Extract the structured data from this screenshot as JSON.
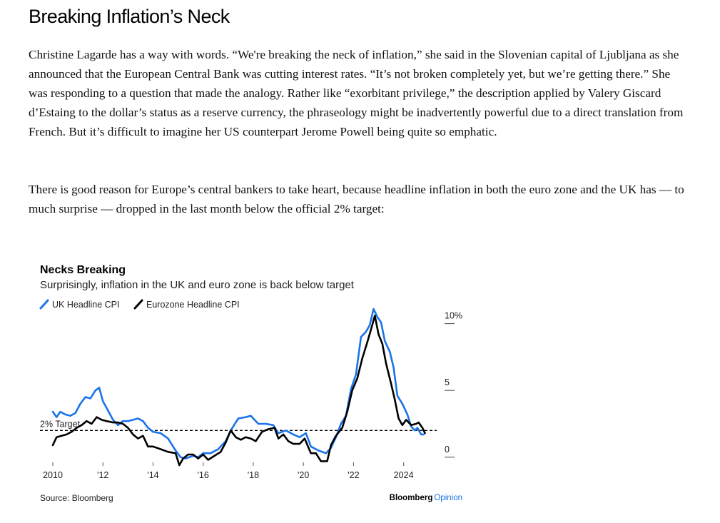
{
  "article": {
    "headline": "Breaking Inflation’s Neck",
    "paragraphs": [
      "Christine Lagarde has a way with words. “We're breaking the neck of inflation,” she said in the Slovenian capital of Ljubljana as she announced that the European Central Bank was cutting interest rates. “It’s not broken completely yet, but we’re getting there.” She was responding to a question that made the analogy. Rather like “exorbitant privilege,” the description applied by Valery Giscard d’Estaing to the dollar’s status as a reserve currency, the phraseology might be inadvertently powerful due to a direct translation from French. But it’s difficult to imagine her US counterpart Jerome Powell being quite so emphatic.",
      "There is good reason for Europe’s central bankers to take heart, because headline inflation in both the euro zone and the UK has — to much surprise — dropped in the last month below the official 2% target:"
    ]
  },
  "chart_data": {
    "type": "line",
    "title": "Necks Breaking",
    "subtitle": "Surprisingly, inflation in the UK and euro zone is back below target",
    "source": "Source: Bloomberg",
    "brand": {
      "name": "Bloomberg",
      "suffix": "Opinion"
    },
    "reference_line": {
      "value": 2,
      "label": "2% Target"
    },
    "xlim": [
      2010,
      2024.95
    ],
    "ylim": [
      -0.6,
      11.1
    ],
    "x_ticks": [
      {
        "value": 2010,
        "label": "2010"
      },
      {
        "value": 2012,
        "label": "'12"
      },
      {
        "value": 2014,
        "label": "'14"
      },
      {
        "value": 2016,
        "label": "'16"
      },
      {
        "value": 2018,
        "label": "'18"
      },
      {
        "value": 2020,
        "label": "'20"
      },
      {
        "value": 2022,
        "label": "'22"
      },
      {
        "value": 2024,
        "label": "2024"
      }
    ],
    "y_ticks": [
      {
        "value": 10,
        "label": "10%"
      },
      {
        "value": 5,
        "label": "5"
      },
      {
        "value": 0,
        "label": "0"
      }
    ],
    "grid": false,
    "legend_position": "top-left",
    "series": [
      {
        "name": "UK Headline CPI",
        "color": "#1a73e8",
        "points": [
          [
            2010.0,
            3.4
          ],
          [
            2010.15,
            3.0
          ],
          [
            2010.3,
            3.4
          ],
          [
            2010.5,
            3.2
          ],
          [
            2010.7,
            3.1
          ],
          [
            2010.9,
            3.3
          ],
          [
            2011.1,
            4.0
          ],
          [
            2011.3,
            4.5
          ],
          [
            2011.5,
            4.4
          ],
          [
            2011.7,
            5.0
          ],
          [
            2011.85,
            5.2
          ],
          [
            2012.0,
            4.2
          ],
          [
            2012.2,
            3.5
          ],
          [
            2012.4,
            2.8
          ],
          [
            2012.6,
            2.4
          ],
          [
            2012.8,
            2.7
          ],
          [
            2013.0,
            2.7
          ],
          [
            2013.2,
            2.8
          ],
          [
            2013.4,
            2.9
          ],
          [
            2013.6,
            2.7
          ],
          [
            2013.8,
            2.2
          ],
          [
            2014.0,
            1.9
          ],
          [
            2014.3,
            1.8
          ],
          [
            2014.6,
            1.4
          ],
          [
            2014.9,
            0.5
          ],
          [
            2015.1,
            0.0
          ],
          [
            2015.3,
            -0.1
          ],
          [
            2015.6,
            0.1
          ],
          [
            2015.8,
            0.0
          ],
          [
            2016.0,
            0.3
          ],
          [
            2016.3,
            0.3
          ],
          [
            2016.6,
            0.6
          ],
          [
            2016.9,
            1.2
          ],
          [
            2017.1,
            2.0
          ],
          [
            2017.4,
            2.9
          ],
          [
            2017.7,
            3.0
          ],
          [
            2017.9,
            3.1
          ],
          [
            2018.2,
            2.5
          ],
          [
            2018.5,
            2.5
          ],
          [
            2018.8,
            2.4
          ],
          [
            2019.0,
            1.8
          ],
          [
            2019.3,
            2.0
          ],
          [
            2019.6,
            1.7
          ],
          [
            2019.85,
            1.5
          ],
          [
            2020.1,
            1.8
          ],
          [
            2020.3,
            0.8
          ],
          [
            2020.6,
            0.5
          ],
          [
            2020.9,
            0.3
          ],
          [
            2021.1,
            0.7
          ],
          [
            2021.3,
            1.5
          ],
          [
            2021.5,
            2.5
          ],
          [
            2021.7,
            3.1
          ],
          [
            2021.9,
            5.1
          ],
          [
            2022.1,
            6.2
          ],
          [
            2022.3,
            9.0
          ],
          [
            2022.5,
            9.4
          ],
          [
            2022.65,
            9.9
          ],
          [
            2022.8,
            11.1
          ],
          [
            2022.95,
            10.5
          ],
          [
            2023.1,
            10.1
          ],
          [
            2023.25,
            8.7
          ],
          [
            2023.45,
            7.9
          ],
          [
            2023.6,
            6.7
          ],
          [
            2023.75,
            4.6
          ],
          [
            2023.95,
            4.0
          ],
          [
            2024.15,
            3.2
          ],
          [
            2024.3,
            2.3
          ],
          [
            2024.45,
            2.0
          ],
          [
            2024.55,
            2.2
          ],
          [
            2024.7,
            1.7
          ],
          [
            2024.8,
            1.7
          ]
        ]
      },
      {
        "name": "Eurozone Headline CPI",
        "color": "#000000",
        "points": [
          [
            2010.0,
            0.9
          ],
          [
            2010.15,
            1.5
          ],
          [
            2010.35,
            1.6
          ],
          [
            2010.55,
            1.7
          ],
          [
            2010.75,
            1.9
          ],
          [
            2010.95,
            2.2
          ],
          [
            2011.15,
            2.4
          ],
          [
            2011.35,
            2.7
          ],
          [
            2011.55,
            2.5
          ],
          [
            2011.75,
            3.0
          ],
          [
            2011.95,
            2.8
          ],
          [
            2012.15,
            2.7
          ],
          [
            2012.4,
            2.6
          ],
          [
            2012.6,
            2.6
          ],
          [
            2012.8,
            2.5
          ],
          [
            2013.0,
            2.2
          ],
          [
            2013.2,
            1.7
          ],
          [
            2013.4,
            1.4
          ],
          [
            2013.6,
            1.6
          ],
          [
            2013.8,
            0.8
          ],
          [
            2014.0,
            0.8
          ],
          [
            2014.3,
            0.6
          ],
          [
            2014.6,
            0.4
          ],
          [
            2014.9,
            0.3
          ],
          [
            2015.05,
            -0.6
          ],
          [
            2015.2,
            -0.1
          ],
          [
            2015.4,
            0.2
          ],
          [
            2015.6,
            0.2
          ],
          [
            2015.8,
            -0.1
          ],
          [
            2016.0,
            0.2
          ],
          [
            2016.2,
            -0.2
          ],
          [
            2016.45,
            0.1
          ],
          [
            2016.7,
            0.4
          ],
          [
            2016.9,
            1.1
          ],
          [
            2017.1,
            2.0
          ],
          [
            2017.3,
            1.5
          ],
          [
            2017.5,
            1.3
          ],
          [
            2017.7,
            1.5
          ],
          [
            2017.9,
            1.4
          ],
          [
            2018.1,
            1.2
          ],
          [
            2018.35,
            1.9
          ],
          [
            2018.6,
            2.1
          ],
          [
            2018.85,
            2.2
          ],
          [
            2019.0,
            1.4
          ],
          [
            2019.2,
            1.7
          ],
          [
            2019.4,
            1.2
          ],
          [
            2019.6,
            1.0
          ],
          [
            2019.85,
            1.0
          ],
          [
            2020.05,
            1.4
          ],
          [
            2020.3,
            0.3
          ],
          [
            2020.5,
            0.3
          ],
          [
            2020.7,
            -0.3
          ],
          [
            2020.95,
            -0.3
          ],
          [
            2021.1,
            0.9
          ],
          [
            2021.3,
            1.6
          ],
          [
            2021.55,
            2.2
          ],
          [
            2021.75,
            3.4
          ],
          [
            2021.95,
            5.0
          ],
          [
            2022.15,
            5.9
          ],
          [
            2022.35,
            7.4
          ],
          [
            2022.55,
            8.6
          ],
          [
            2022.75,
            9.9
          ],
          [
            2022.85,
            10.6
          ],
          [
            2023.0,
            9.2
          ],
          [
            2023.15,
            8.5
          ],
          [
            2023.3,
            7.0
          ],
          [
            2023.5,
            5.5
          ],
          [
            2023.65,
            4.3
          ],
          [
            2023.8,
            2.9
          ],
          [
            2023.95,
            2.4
          ],
          [
            2024.1,
            2.8
          ],
          [
            2024.3,
            2.4
          ],
          [
            2024.5,
            2.5
          ],
          [
            2024.6,
            2.6
          ],
          [
            2024.75,
            2.2
          ],
          [
            2024.85,
            1.8
          ]
        ]
      }
    ]
  }
}
